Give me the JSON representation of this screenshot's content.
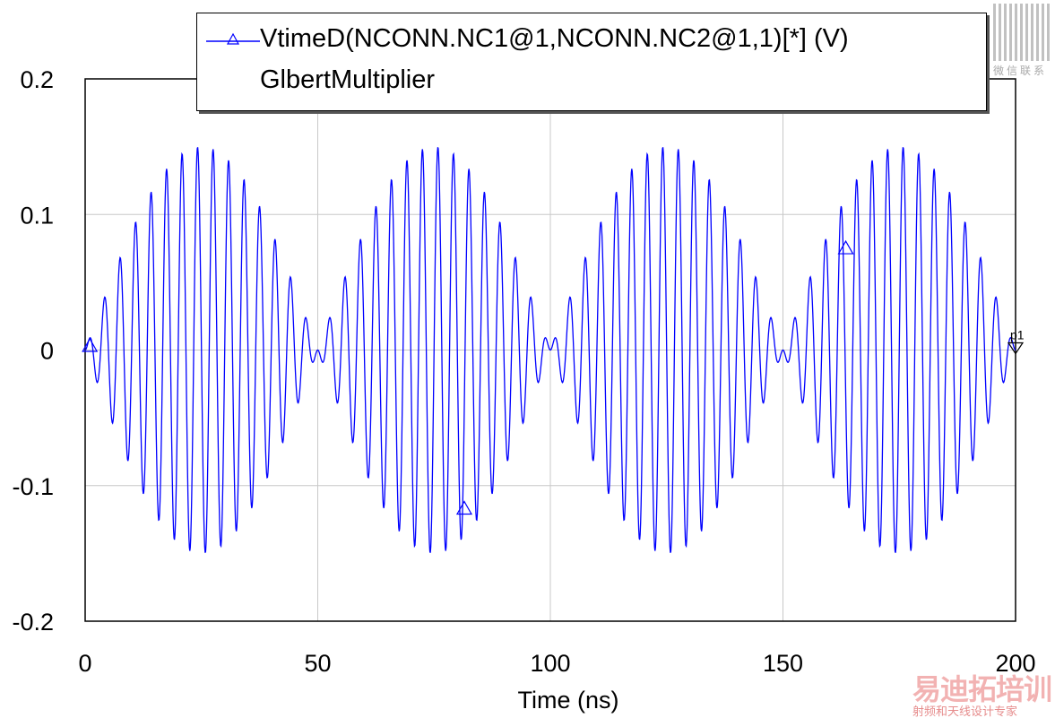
{
  "chart_data": {
    "type": "line",
    "title": "",
    "xlabel": "Time (ns)",
    "ylabel": "",
    "xlim": [
      0,
      200
    ],
    "ylim": [
      -0.2,
      0.2
    ],
    "xticks": [
      "0",
      "50",
      "100",
      "150",
      "200"
    ],
    "xtick_values": [
      0,
      50,
      100,
      150,
      200
    ],
    "yticks": [
      "0.2",
      "0.1",
      "0",
      "-0.1",
      "-0.2"
    ],
    "ytick_values": [
      0.2,
      0.1,
      0,
      -0.1,
      -0.2
    ],
    "grid": true,
    "legend_placement": "top",
    "series": [
      {
        "name": "VtimeD(NCONN.NC1@1,NCONN.NC2@1,1)[*] (V)",
        "subtitle": "GlbertMultiplier",
        "color": "#0000ff",
        "model": "amplitude * sin(2*pi*envelope_freq*t) * sin(2*pi*carrier_freq*t)",
        "amplitude": 0.15,
        "envelope_freq_ghz": 0.01,
        "carrier_freq_ghz": 0.3,
        "samples": 2000,
        "markers": [
          {
            "x": 1,
            "y": 0.003,
            "shape": "triangle-up"
          },
          {
            "x": 81.5,
            "y": -0.117,
            "shape": "triangle-up"
          },
          {
            "x": 163.5,
            "y": 0.075,
            "shape": "triangle-up"
          }
        ]
      }
    ],
    "marker_p1": {
      "label": "p1",
      "x": 200,
      "y": 0.0
    }
  },
  "watermark": {
    "qr_caption": "微信联系",
    "brand": "易迪拓培训",
    "slogan": "射频和天线设计专家"
  }
}
